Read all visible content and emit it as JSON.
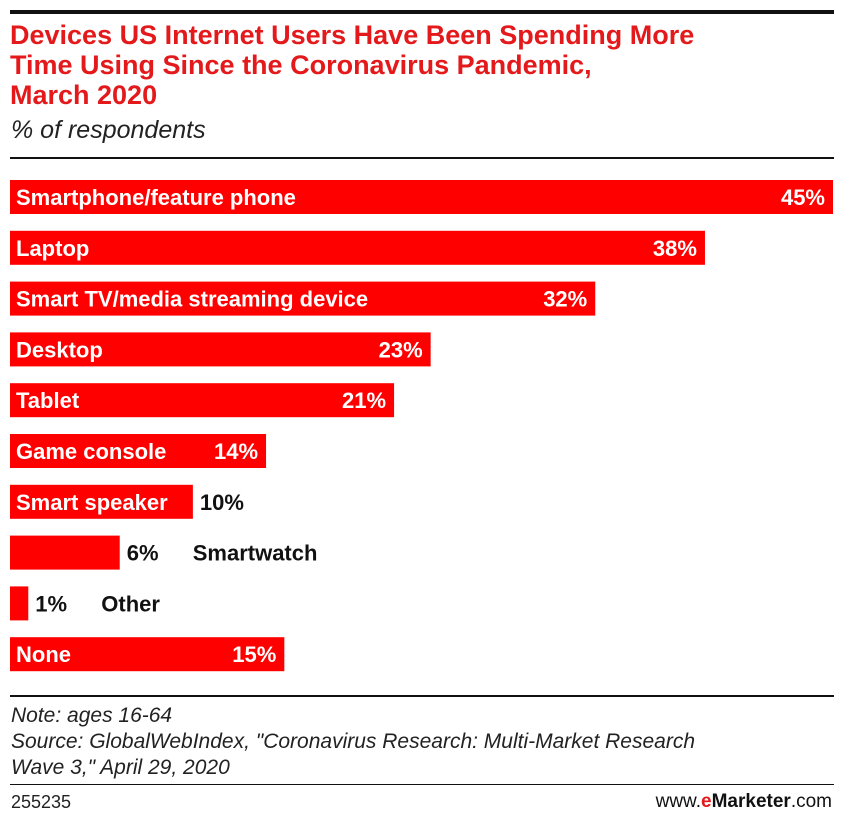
{
  "header": {
    "title_lines": [
      "Devices US Internet Users Have Been Spending More",
      "Time Using Since the Coronavirus Pandemic,",
      "March 2020"
    ],
    "subtitle": "% of respondents"
  },
  "chart_data": {
    "type": "bar",
    "orientation": "horizontal",
    "title": "Devices US Internet Users Have Been Spending More Time Using Since the Coronavirus Pandemic, March 2020",
    "subtitle": "% of respondents",
    "categories": [
      "Smartphone/feature phone",
      "Laptop",
      "Smart TV/media streaming device",
      "Desktop",
      "Tablet",
      "Game console",
      "Smart speaker",
      "Smartwatch",
      "Other",
      "None"
    ],
    "values": [
      45,
      38,
      32,
      23,
      21,
      14,
      10,
      6,
      1,
      15
    ],
    "value_labels": [
      "45%",
      "38%",
      "32%",
      "23%",
      "21%",
      "14%",
      "10%",
      "6%",
      "1%",
      "15%"
    ],
    "xlim": [
      0,
      45
    ],
    "xlabel": "",
    "ylabel": "",
    "grid": false,
    "bar_color": "#ff0000"
  },
  "notes": {
    "note": "Note: ages 16-64",
    "source_line1": "Source: GlobalWebIndex, \"Coronavirus Research: Multi-Market Research",
    "source_line2": "Wave 3,\" April 29, 2020"
  },
  "footer": {
    "id": "255235",
    "brand_prefix": "www.",
    "brand_e": "e",
    "brand_marketer": "Marketer",
    "brand_suffix": ".com"
  },
  "colors": {
    "accent": "#e3191b",
    "bar": "#ff0000",
    "text": "#111111"
  }
}
